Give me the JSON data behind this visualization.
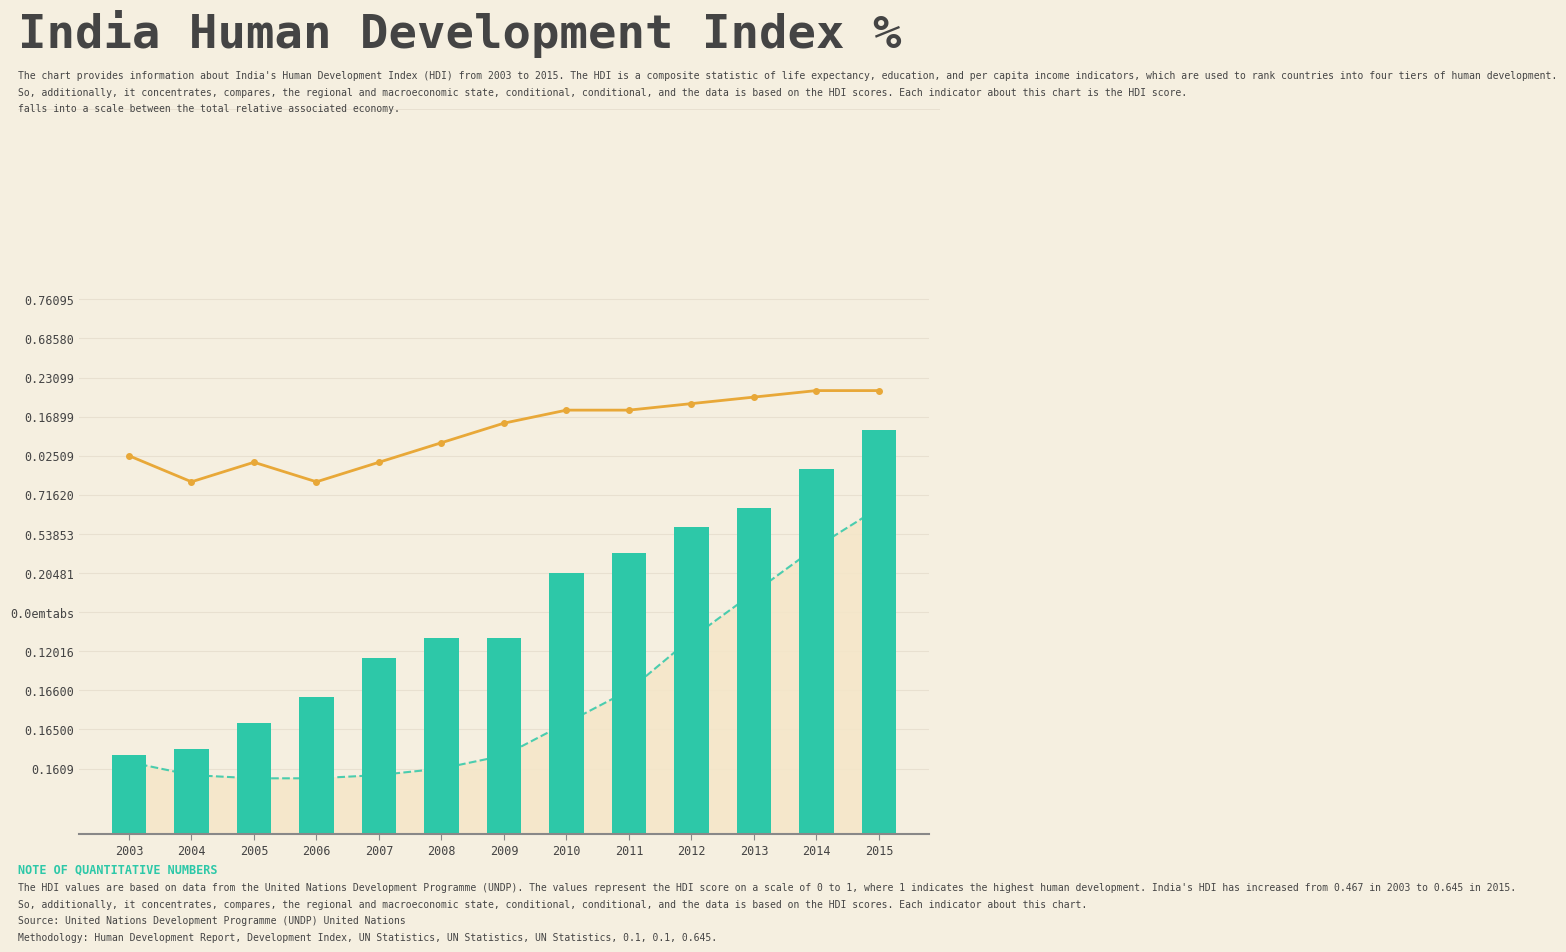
{
  "title": "India Human Development Index %",
  "subtitle_lines": [
    "The chart provides information about India's Human Development Index (HDI) from 2003 to 2015. The HDI is a composite statistic of life expectancy, education, and per capita income indicators, which are used to rank countries into four tiers of human development.",
    "So, additionally, it concentrates, compares, the regional and macroeconomic state, conditional, conditional, and the data is based on the HDI scores. Each indicator about this chart is the HDI score.",
    "falls into a scale between the total relative associated economy."
  ],
  "note_title": "NOTE OF QUANTITATIVE NUMBERS",
  "note_lines": [
    "The HDI values are based on data from the United Nations Development Programme (UNDP). The values represent the HDI score on a scale of 0 to 1, where 1 indicates the highest human development. India's HDI has increased from 0.467 in 2003 to 0.645 in 2015.",
    "So, additionally, it concentrates, compares, the regional and macroeconomic state, conditional, conditional, and the data is based on the HDI scores. Each indicator about this chart.",
    "Source: United Nations Development Programme (UNDP) United Nations",
    "Methodology: Human Development Report, Development Index, UN Statistics, UN Statistics, UN Statistics, 0.1, 0.1, 0.645."
  ],
  "years": [
    2003,
    2004,
    2005,
    2006,
    2007,
    2008,
    2009,
    2010,
    2011,
    2012,
    2013,
    2014,
    2015
  ],
  "bar_heights": [
    0.12,
    0.13,
    0.17,
    0.21,
    0.27,
    0.3,
    0.3,
    0.4,
    0.43,
    0.47,
    0.5,
    0.56,
    0.62
  ],
  "bar_color": "#2DC8A8",
  "line1_color": "#E8A838",
  "line1_values": [
    0.58,
    0.54,
    0.57,
    0.54,
    0.57,
    0.6,
    0.63,
    0.65,
    0.65,
    0.66,
    0.67,
    0.68,
    0.68
  ],
  "line2_color": "#2DC8A8",
  "line2_values": [
    0.11,
    0.09,
    0.085,
    0.085,
    0.09,
    0.1,
    0.12,
    0.17,
    0.22,
    0.3,
    0.37,
    0.44,
    0.5
  ],
  "fill_color": "#F5E6C8",
  "ytick_positions": [
    0.82,
    0.76,
    0.7,
    0.64,
    0.58,
    0.52,
    0.46,
    0.4,
    0.34,
    0.28,
    0.22,
    0.16,
    0.1
  ],
  "ytick_labels": [
    "0.76095",
    "0.68580",
    "0.23099",
    "0.16899",
    "0.02509",
    "0.71620",
    "0.53853",
    "0.20481",
    "0.0emtabs",
    "0.12016",
    "0.16600",
    "0.16500",
    "0.1609"
  ],
  "ylim": [
    0.0,
    0.88
  ],
  "background_color": "#F5EFE0",
  "grid_color": "#E8E0D0",
  "text_color": "#444444",
  "teal_text_color": "#2DC8A8",
  "title_fontsize": 34,
  "subtitle_fontsize": 7,
  "note_fontsize": 7,
  "axis_label_fontsize": 8.5
}
